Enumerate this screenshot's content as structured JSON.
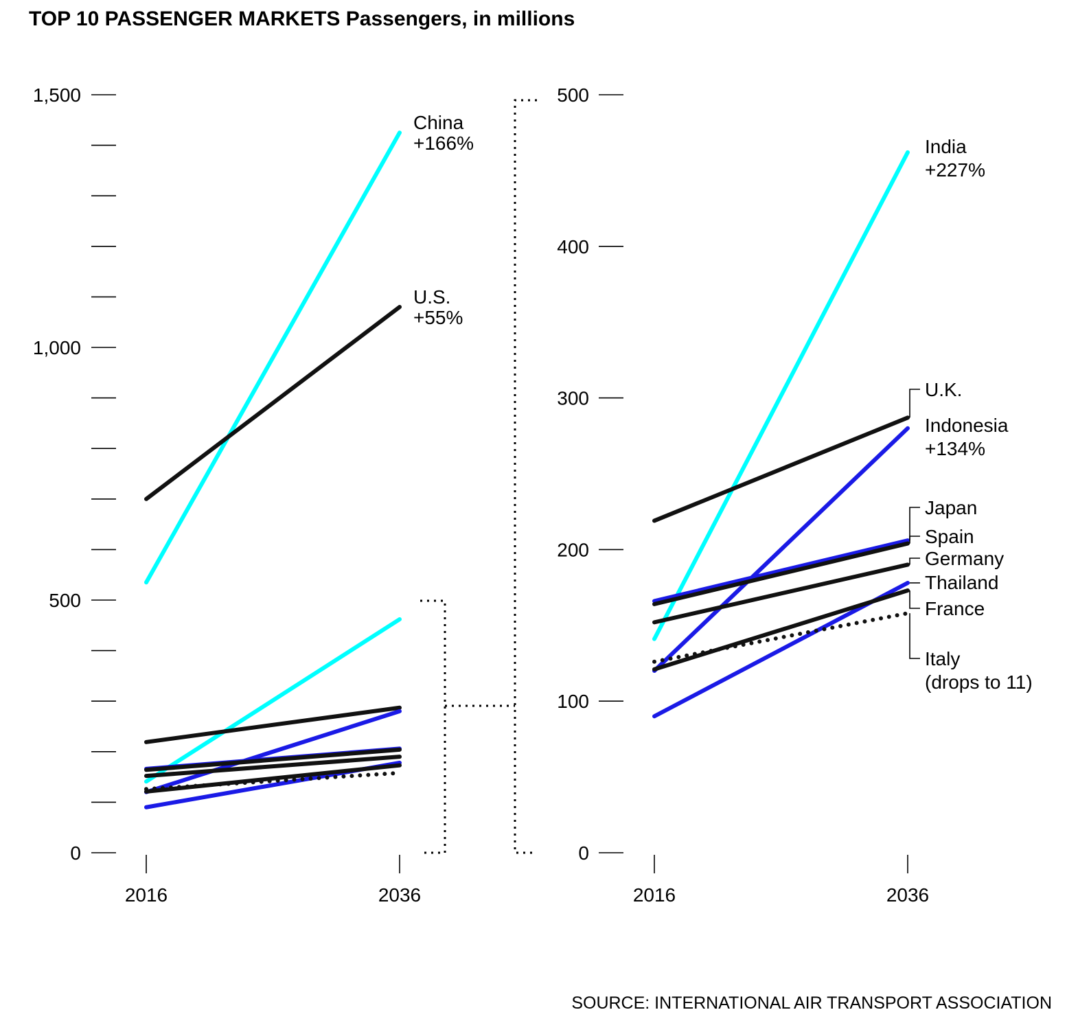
{
  "colors": {
    "cyan": "#00ffff",
    "blue": "#1a1ae6",
    "black": "#111111",
    "axis": "#000000"
  },
  "chart_data": {
    "type": "line",
    "title": "TOP 10 PASSENGER MARKETS",
    "subtitle": "Passengers, in millions",
    "source": "SOURCE: INTERNATIONAL AIR TRANSPORT ASSOCIATION",
    "x": [
      "2016",
      "2036"
    ],
    "panels": [
      {
        "name": "all-markets",
        "ylim": [
          0,
          1500
        ],
        "major_ticks": [
          0,
          500,
          1000,
          1500
        ],
        "major_tick_labels": [
          "0",
          "500",
          "1,000",
          "1,500"
        ],
        "minor_step": 100,
        "series": [
          {
            "name": "China",
            "values": [
              535,
              1425
            ],
            "color": "cyan",
            "style": "solid",
            "label": [
              "China",
              "+166%"
            ]
          },
          {
            "name": "U.S.",
            "values": [
              700,
              1080
            ],
            "color": "black",
            "style": "solid",
            "label": [
              "U.S.",
              "+55%"
            ]
          },
          {
            "name": "India",
            "values": [
              141,
              462
            ],
            "color": "cyan",
            "style": "solid"
          },
          {
            "name": "U.K.",
            "values": [
              219,
              287
            ],
            "color": "black",
            "style": "solid"
          },
          {
            "name": "Indonesia",
            "values": [
              120,
              280
            ],
            "color": "blue",
            "style": "solid"
          },
          {
            "name": "Japan",
            "values": [
              166,
              206
            ],
            "color": "blue",
            "style": "solid"
          },
          {
            "name": "Spain",
            "values": [
              164,
              204
            ],
            "color": "black",
            "style": "solid"
          },
          {
            "name": "Germany",
            "values": [
              152,
              190
            ],
            "color": "black",
            "style": "solid"
          },
          {
            "name": "Thailand",
            "values": [
              90,
              178
            ],
            "color": "blue",
            "style": "solid"
          },
          {
            "name": "France",
            "values": [
              121,
              173
            ],
            "color": "black",
            "style": "solid"
          },
          {
            "name": "Italy",
            "values": [
              126,
              158
            ],
            "color": "black",
            "style": "dotted"
          }
        ]
      },
      {
        "name": "zoom-0-500",
        "ylim": [
          0,
          500
        ],
        "major_ticks": [
          0,
          100,
          200,
          300,
          400,
          500
        ],
        "major_tick_labels": [
          "0",
          "100",
          "200",
          "300",
          "400",
          "500"
        ],
        "series": [
          {
            "name": "India",
            "values": [
              141,
              462
            ],
            "color": "cyan",
            "style": "solid",
            "label": [
              "India",
              "+227%"
            ]
          },
          {
            "name": "U.K.",
            "values": [
              219,
              287
            ],
            "color": "black",
            "style": "solid",
            "label": [
              "U.K."
            ]
          },
          {
            "name": "Indonesia",
            "values": [
              120,
              280
            ],
            "color": "blue",
            "style": "solid",
            "label": [
              "Indonesia",
              "+134%"
            ]
          },
          {
            "name": "Japan",
            "values": [
              166,
              206
            ],
            "color": "blue",
            "style": "solid",
            "label": [
              "Japan"
            ]
          },
          {
            "name": "Spain",
            "values": [
              164,
              204
            ],
            "color": "black",
            "style": "solid",
            "label": [
              "Spain"
            ]
          },
          {
            "name": "Germany",
            "values": [
              152,
              190
            ],
            "color": "black",
            "style": "solid",
            "label": [
              "Germany"
            ]
          },
          {
            "name": "Thailand",
            "values": [
              90,
              178
            ],
            "color": "blue",
            "style": "solid",
            "label": [
              "Thailand"
            ]
          },
          {
            "name": "France",
            "values": [
              121,
              173
            ],
            "color": "black",
            "style": "solid",
            "label": [
              "France"
            ]
          },
          {
            "name": "Italy",
            "values": [
              126,
              158
            ],
            "color": "black",
            "style": "dotted",
            "label": [
              "Italy",
              "(drops to 11)"
            ]
          }
        ]
      }
    ]
  }
}
